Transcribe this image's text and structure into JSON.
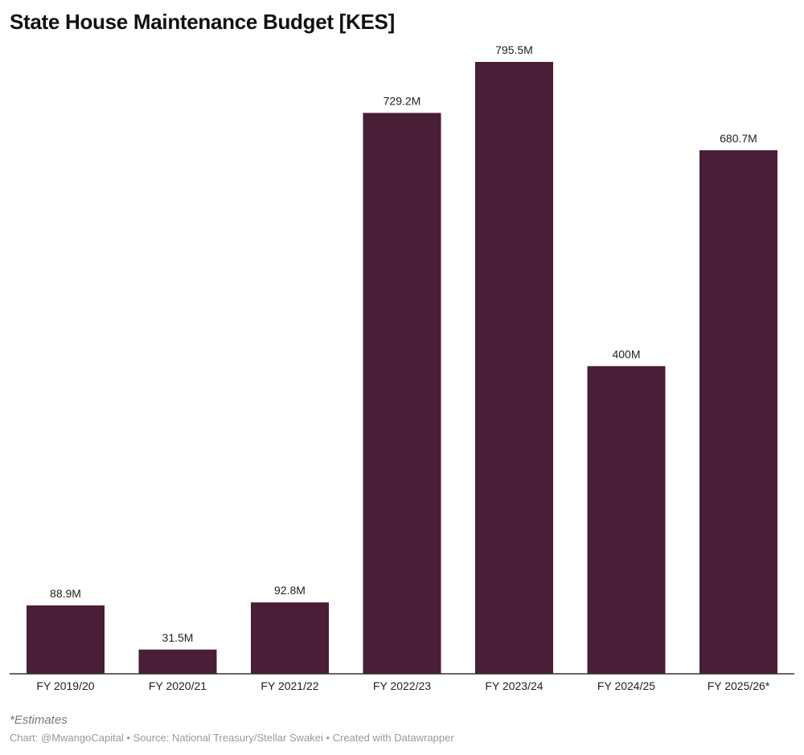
{
  "title": "State House Maintenance Budget [KES]",
  "note": "*Estimates",
  "credit": "Chart: @MwangoCapital • Source: National Treasury/Stellar Swakei • Created with Datawrapper",
  "colors": {
    "bar": "#4a1e36",
    "axis": "#333333"
  },
  "chart_data": {
    "type": "bar",
    "title": "State House Maintenance Budget [KES]",
    "categories": [
      "FY 2019/20",
      "FY 2020/21",
      "FY 2021/22",
      "FY 2022/23",
      "FY 2023/24",
      "FY 2024/25",
      "FY 2025/26*"
    ],
    "values": [
      88.9,
      31.5,
      92.8,
      729.2,
      795.5,
      400,
      680.7
    ],
    "labels": [
      "88.9M",
      "31.5M",
      "92.8M",
      "729.2M",
      "795.5M",
      "400M",
      "680.7M"
    ],
    "unit": "M KES",
    "ylim": [
      0,
      795.5
    ],
    "grid": false,
    "xlabel": "",
    "ylabel": ""
  }
}
